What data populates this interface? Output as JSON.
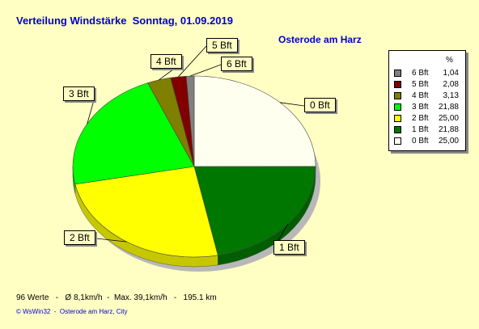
{
  "header": {
    "title": "Verteilung Windstärke  Sonntag, 01.09.2019",
    "location": "Osterode am Harz"
  },
  "chart_data": {
    "type": "pie",
    "title": "Verteilung Windstärke  Sonntag, 01.09.2019",
    "categories": [
      "0 Bft",
      "1 Bft",
      "2 Bft",
      "3 Bft",
      "4 Bft",
      "5 Bft",
      "6 Bft"
    ],
    "values": [
      25.0,
      21.88,
      25.0,
      21.88,
      3.13,
      2.08,
      1.04
    ],
    "value_labels": [
      "25,00",
      "21,88",
      "25,00",
      "21,88",
      "3,13",
      "2,08",
      "1,04"
    ],
    "colors": [
      "#fffff0",
      "#007800",
      "#ffff00",
      "#00ff00",
      "#7f7f00",
      "#800000",
      "#808080"
    ],
    "legend": {
      "header": "%",
      "placement": "right",
      "order": [
        "6 Bft",
        "5 Bft",
        "4 Bft",
        "3 Bft",
        "2 Bft",
        "1 Bft",
        "0 Bft"
      ]
    }
  },
  "footer": {
    "stats": "96 Werte   -   Ø 8,1km/h  -  Max. 39,1km/h   -   195.1 km",
    "credit": "© WsWin32  -  Osterode am Harz, City"
  }
}
